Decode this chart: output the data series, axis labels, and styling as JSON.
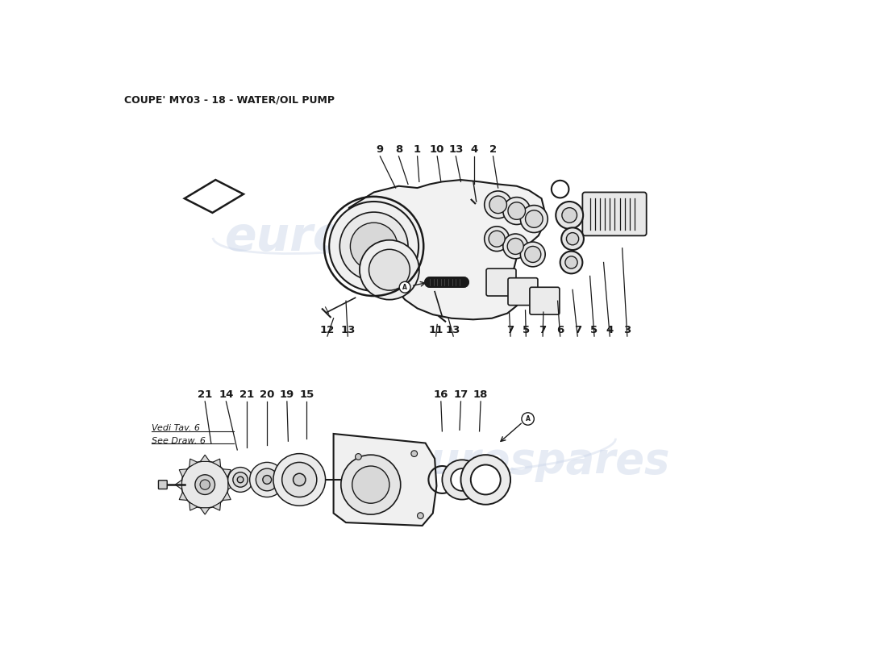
{
  "title": "COUPE' MY03 - 18 - WATER/OIL PUMP",
  "title_fontsize": 9,
  "title_color": "#1a1a1a",
  "bg_color": "#ffffff",
  "line_color": "#1a1a1a",
  "watermark_color": "#c8d4e8",
  "watermark_text": "eurospares",
  "vedi_text1": "Vedi Tav. 6",
  "vedi_text2": "See Draw. 6"
}
